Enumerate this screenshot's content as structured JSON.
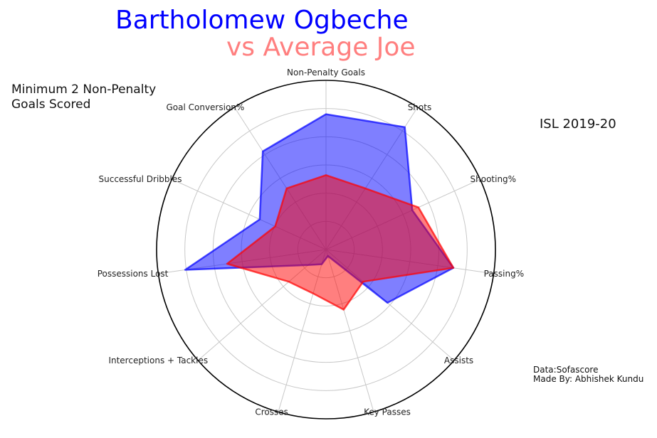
{
  "header": {
    "title": "Bartholomew Ogbeche",
    "subtitle": "vs Average Joe",
    "note": "Minimum 2 Non-Penalty\nGoals Scored",
    "season": "ISL 2019-20",
    "credits": "Data:Sofascore\nMade By: Abhishek Kundu"
  },
  "chart_data": {
    "type": "radar",
    "axes": [
      "Non-Penalty Goals",
      "Shots",
      "Shooting%",
      "Passing%",
      "Assists",
      "Key Passes",
      "Crosses",
      "Interceptions + Tackles",
      "Possessions Lost",
      "Successful Dribbles",
      "Goal Conversion%"
    ],
    "rlim": [
      0,
      1
    ],
    "rings": 5,
    "grid": true,
    "series": [
      {
        "name": "Bartholomew Ogbeche",
        "color": "#0000ff",
        "values": [
          0.8,
          0.86,
          0.56,
          0.76,
          0.48,
          0.04,
          0.09,
          0.14,
          0.84,
          0.43,
          0.69
        ]
      },
      {
        "name": "Average Joe",
        "color": "#ff0000",
        "values": [
          0.44,
          0.43,
          0.6,
          0.76,
          0.29,
          0.37,
          0.27,
          0.29,
          0.59,
          0.33,
          0.43
        ]
      }
    ]
  }
}
